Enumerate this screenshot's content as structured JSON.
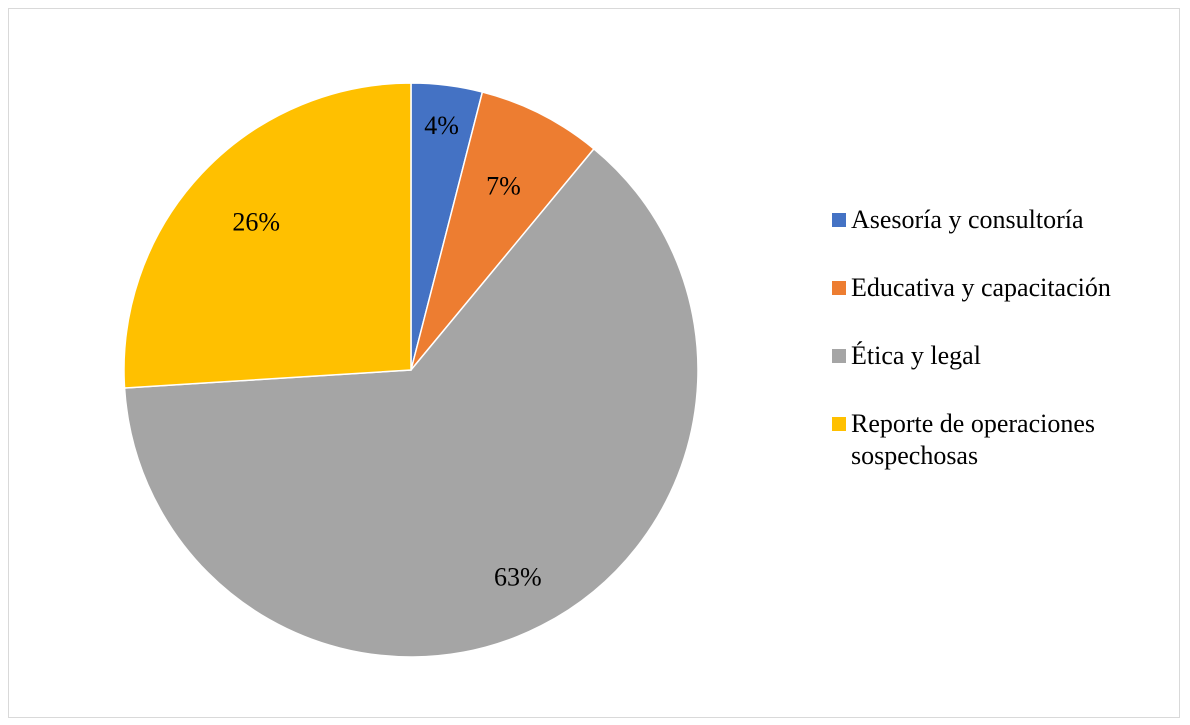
{
  "chart_data": {
    "type": "pie",
    "title": "",
    "legend_position": "right",
    "slices": [
      {
        "name": "Asesoría y consultoría",
        "value": 4,
        "label": "4%",
        "color": "#4472C4"
      },
      {
        "name": "Educativa y capacitación",
        "value": 7,
        "label": "7%",
        "color": "#ED7D31"
      },
      {
        "name": "Ética y legal",
        "value": 63,
        "label": "63%",
        "color": "#A5A5A5"
      },
      {
        "name": "Reporte de operaciones sospechosas",
        "value": 26,
        "label": "26%",
        "color": "#FFC000"
      }
    ]
  }
}
